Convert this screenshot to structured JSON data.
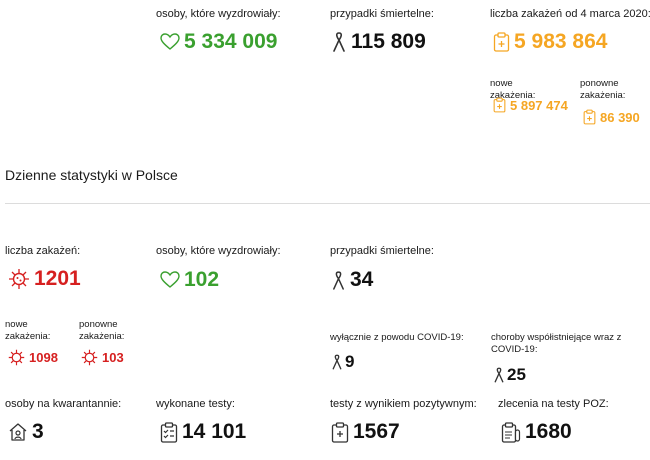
{
  "top": {
    "recovered": {
      "label": "osoby, które wyzdrowiały:",
      "value": "5 334 009"
    },
    "deaths": {
      "label": "przypadki śmiertelne:",
      "value": "115 809"
    },
    "infections": {
      "label": "liczba zakażeń od 4 marca 2020:",
      "value": "5 983 864",
      "new": {
        "label": "nowe zakażenia:",
        "value": "5 897 474"
      },
      "repeat": {
        "label": "ponowne zakażenia:",
        "value": "86 390"
      }
    }
  },
  "daily": {
    "title": "Dzienne statystyki w Polsce",
    "infections": {
      "label": "liczba zakażeń:",
      "value": "1201",
      "new": {
        "label": "nowe zakażenia:",
        "value": "1098"
      },
      "repeat": {
        "label": "ponowne zakażenia:",
        "value": "103"
      }
    },
    "recovered": {
      "label": "osoby, które wyzdrowiały:",
      "value": "102"
    },
    "deaths": {
      "label": "przypadki śmiertelne:",
      "value": "34",
      "covid_only": {
        "label": "wyłącznie z powodu COVID-19:",
        "value": "9"
      },
      "comorbid": {
        "label": "choroby współistniejące wraz z COVID-19:",
        "value": "25"
      }
    },
    "quarantine": {
      "label": "osoby na kwarantannie:",
      "value": "3"
    },
    "tests": {
      "label": "wykonane testy:",
      "value": "14 101"
    },
    "positive_tests": {
      "label": "testy z wynikiem pozytywnym:",
      "value": "1567"
    },
    "poz_orders": {
      "label": "zlecenia na testy POZ:",
      "value": "1680"
    }
  },
  "colors": {
    "green": "#3aa02f",
    "red": "#d62020",
    "orange": "#f5a623",
    "black": "#111111"
  },
  "icons": [
    "heart-icon",
    "ribbon-icon",
    "clipboard-icon",
    "virus-icon",
    "house-icon",
    "checklist-icon",
    "test-tube-icon"
  ]
}
